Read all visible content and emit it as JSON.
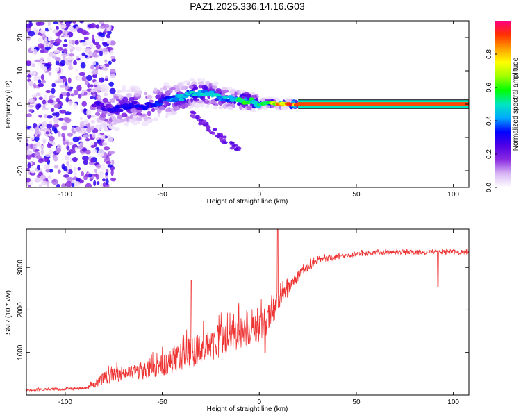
{
  "figure": {
    "title": "PAZ1.2025.336.14.16.G03"
  },
  "chart_data": [
    {
      "type": "heatmap",
      "xlabel": "Height of straight line (km)",
      "ylabel": "Frequency (Hz)",
      "xlim": [
        -120,
        108
      ],
      "ylim": [
        -25,
        25
      ],
      "x_ticks": [
        -100,
        -50,
        0,
        50,
        100
      ],
      "y_ticks": [
        -20,
        -10,
        0,
        10,
        20
      ],
      "colorbar": {
        "label": "Normalized spectral amplitude",
        "range": [
          0,
          1
        ],
        "ticks": [
          0.0,
          0.2,
          0.4,
          0.6,
          0.8
        ],
        "tick_labels": [
          "0.0",
          "0.2",
          "0.4",
          "0.6",
          "0.8"
        ],
        "colors": [
          "#ffffff",
          "#d8b6f4",
          "#8a2be2",
          "#5000e6",
          "#0000ff",
          "#00aaff",
          "#00e5c0",
          "#00ff00",
          "#a0ff00",
          "#ffff00",
          "#ffa000",
          "#ff3000",
          "#ff0080"
        ]
      },
      "ridge": {
        "x": [
          -85,
          -80,
          -75,
          -70,
          -65,
          -60,
          -55,
          -50,
          -45,
          -40,
          -35,
          -30,
          -25,
          -20,
          -15,
          -10,
          -5,
          0,
          5,
          10,
          15,
          20,
          108
        ],
        "freq": [
          0,
          -1,
          -2,
          -1,
          0,
          -1,
          0,
          1,
          1.5,
          2,
          3,
          3.5,
          3,
          2,
          1.5,
          1,
          1,
          0,
          0.5,
          0,
          0,
          0,
          0
        ],
        "amplitude": [
          0.25,
          0.3,
          0.3,
          0.35,
          0.3,
          0.35,
          0.35,
          0.35,
          0.45,
          0.5,
          0.5,
          0.5,
          0.5,
          0.5,
          0.45,
          0.55,
          0.6,
          0.5,
          0.65,
          0.85,
          0.9,
          0.95,
          0.95
        ]
      },
      "noise_region_x": [
        -120,
        -80
      ]
    },
    {
      "type": "line",
      "xlabel": "Height of straight line (km)",
      "ylabel": "SNR (10 * v/v)",
      "xlim": [
        -120,
        108
      ],
      "ylim": [
        0,
        3900
      ],
      "x_ticks": [
        -100,
        -50,
        0,
        50,
        100
      ],
      "y_ticks": [
        1000,
        2000,
        3000
      ],
      "color": "#ee3333",
      "envelope": {
        "x": [
          -120,
          -90,
          -85,
          -80,
          -70,
          -60,
          -50,
          -40,
          -30,
          -20,
          -10,
          -5,
          0,
          5,
          10,
          15,
          20,
          25,
          30,
          40,
          50,
          60,
          70,
          80,
          90,
          100,
          108
        ],
        "snr": [
          120,
          150,
          250,
          400,
          520,
          560,
          700,
          900,
          1100,
          1300,
          1450,
          1500,
          1600,
          1800,
          2200,
          2500,
          2800,
          3000,
          3150,
          3250,
          3300,
          3350,
          3350,
          3350,
          3350,
          3350,
          3350
        ],
        "spread": [
          60,
          60,
          150,
          300,
          350,
          400,
          500,
          650,
          750,
          800,
          800,
          650,
          700,
          700,
          500,
          350,
          250,
          200,
          150,
          130,
          120,
          110,
          110,
          110,
          110,
          110,
          110
        ]
      },
      "spikes": [
        {
          "x": 9.5,
          "snr": 3900
        },
        {
          "x": 3,
          "snr": 1000
        },
        {
          "x": 92,
          "snr": 2550
        },
        {
          "x": -35,
          "snr": 2700
        }
      ]
    }
  ]
}
